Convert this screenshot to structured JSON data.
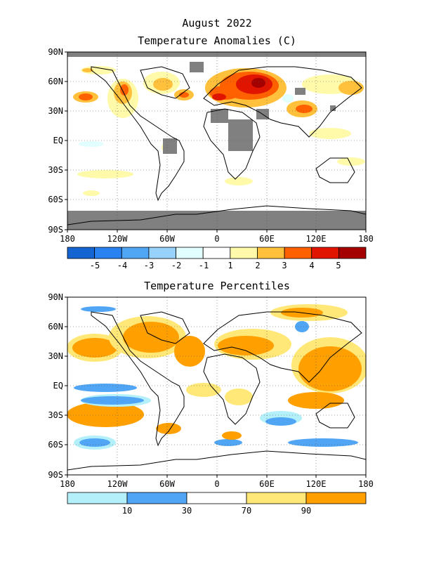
{
  "header": {
    "title_line1": "August 2022",
    "title_line2": "Temperature Anomalies (C)"
  },
  "map1": {
    "lat_labels": [
      "90N",
      "60N",
      "30N",
      "EQ",
      "30S",
      "60S",
      "90S"
    ],
    "lon_labels": [
      "180",
      "120W",
      "60W",
      "0",
      "60E",
      "120E",
      "180"
    ],
    "legend_labels": [
      "-5",
      "-4",
      "-3",
      "-2",
      "-1",
      "1",
      "2",
      "3",
      "4",
      "5"
    ],
    "legend_colors": [
      "#1464d2",
      "#2882f0",
      "#50a5f5",
      "#96d2fa",
      "#e1ffff",
      "#ffffff",
      "#fffaaa",
      "#ffc03c",
      "#ff6000",
      "#e11400",
      "#a50000"
    ]
  },
  "map2": {
    "title": "Temperature Percentiles",
    "lat_labels": [
      "90N",
      "60N",
      "30N",
      "EQ",
      "30S",
      "60S",
      "90S"
    ],
    "lon_labels": [
      "180",
      "120W",
      "60W",
      "0",
      "60E",
      "120E",
      "180"
    ],
    "legend_labels": [
      "10",
      "30",
      "70",
      "90"
    ],
    "legend_colors": [
      "#b4f0fa",
      "#50a5f5",
      "#ffffff",
      "#ffe878",
      "#ffa000"
    ]
  },
  "colors": {
    "missing": "#808080",
    "land_outline": "#000000"
  }
}
